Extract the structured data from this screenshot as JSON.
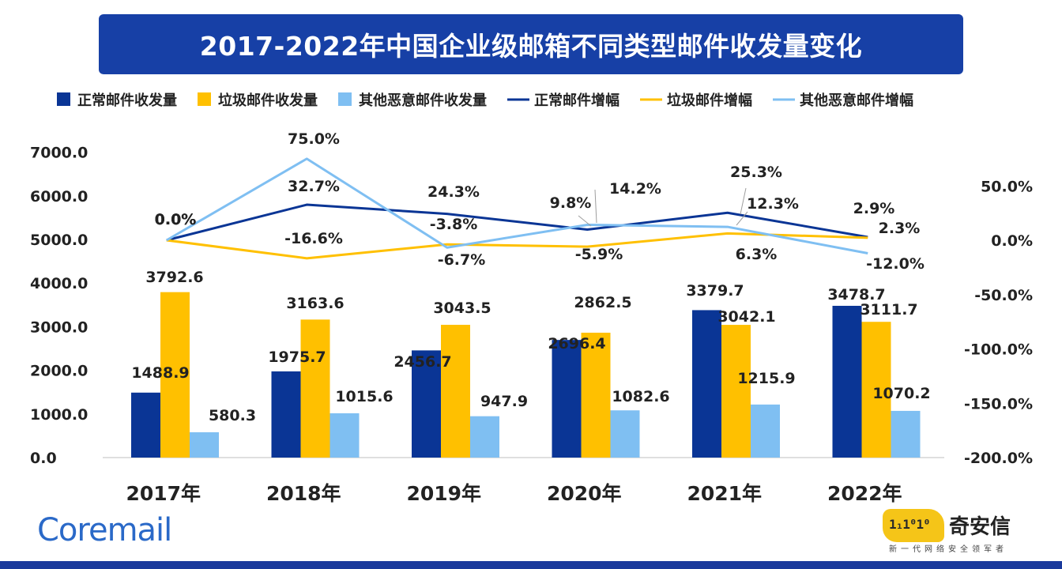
{
  "title": "2017-2022年中国企业级邮箱不同类型邮件收发量变化",
  "colors": {
    "normal": "#0a3595",
    "spam": "#ffc000",
    "malicious": "#7fbff2",
    "title_bg": "#1740a6"
  },
  "legend": [
    {
      "label": "正常邮件收发量",
      "kind": "bar",
      "series": "normal"
    },
    {
      "label": "垃圾邮件收发量",
      "kind": "bar",
      "series": "spam"
    },
    {
      "label": "其他恶意邮件收发量",
      "kind": "bar",
      "series": "malicious"
    },
    {
      "label": "正常邮件增幅",
      "kind": "line",
      "series": "normal"
    },
    {
      "label": "垃圾邮件增幅",
      "kind": "line",
      "series": "spam"
    },
    {
      "label": "其他恶意邮件增幅",
      "kind": "line",
      "series": "malicious"
    }
  ],
  "chart_data": {
    "type": "bar",
    "categories": [
      "2017年",
      "2018年",
      "2019年",
      "2020年",
      "2021年",
      "2022年"
    ],
    "series": [
      {
        "name": "正常邮件收发量",
        "type": "bar",
        "axis": "left",
        "color": "#0a3595",
        "values": [
          1488.9,
          1975.7,
          2456.7,
          2696.4,
          3379.7,
          3478.7
        ],
        "labels": [
          "1488.9",
          "1975.7",
          "2456.7",
          "2696.4",
          "3379.7",
          "3478.7"
        ]
      },
      {
        "name": "垃圾邮件收发量",
        "type": "bar",
        "axis": "left",
        "color": "#ffc000",
        "values": [
          3792.6,
          3163.6,
          3043.5,
          2862.5,
          3042.1,
          3111.7
        ],
        "labels": [
          "3792.6",
          "3163.6",
          "3043.5",
          "2862.5",
          "3042.1",
          "3111.7"
        ]
      },
      {
        "name": "其他恶意邮件收发量",
        "type": "bar",
        "axis": "left",
        "color": "#7fbff2",
        "values": [
          580.3,
          1015.6,
          947.9,
          1082.6,
          1215.9,
          1070.2
        ],
        "labels": [
          "580.3",
          "1015.6",
          "947.9",
          "1082.6",
          "1215.9",
          "1070.2"
        ]
      },
      {
        "name": "正常邮件增幅",
        "type": "line",
        "axis": "right",
        "color": "#0a3595",
        "values": [
          0.0,
          32.7,
          24.3,
          9.8,
          25.3,
          2.9
        ],
        "labels": [
          "0.0%",
          "32.7%",
          "24.3%",
          "9.8%",
          "25.3%",
          "2.9%"
        ]
      },
      {
        "name": "垃圾邮件增幅",
        "type": "line",
        "axis": "right",
        "color": "#ffc000",
        "values": [
          0.0,
          -16.6,
          -3.8,
          -5.9,
          6.3,
          2.3
        ],
        "labels": [
          "0.0%",
          "-16.6%",
          "-3.8%",
          "-5.9%",
          "6.3%",
          "2.3%"
        ]
      },
      {
        "name": "其他恶意邮件增幅",
        "type": "line",
        "axis": "right",
        "color": "#7fbff2",
        "values": [
          0.0,
          75.0,
          -6.7,
          14.2,
          12.3,
          -12.0
        ],
        "labels": [
          "0.0%",
          "75.0%",
          "-6.7%",
          "14.2%",
          "12.3%",
          "-12.0%"
        ]
      }
    ],
    "y_left": {
      "min": 0,
      "max": 7000,
      "ticks": [
        "0.0",
        "1000.0",
        "2000.0",
        "3000.0",
        "4000.0",
        "5000.0",
        "6000.0",
        "7000.0"
      ]
    },
    "y_right": {
      "min": -200,
      "max": 80,
      "ticks": [
        "-200.0%",
        "-150.0%",
        "-100.0%",
        "-50.0%",
        "0.0%",
        "50.0%"
      ]
    },
    "grid": false,
    "legend_position": "top"
  },
  "logos": {
    "coremail": "Coremail",
    "qax_emblem": "1₁1⁰1⁰",
    "qax_name": "奇安信",
    "qax_slogan": "新一代网络安全领军者"
  }
}
